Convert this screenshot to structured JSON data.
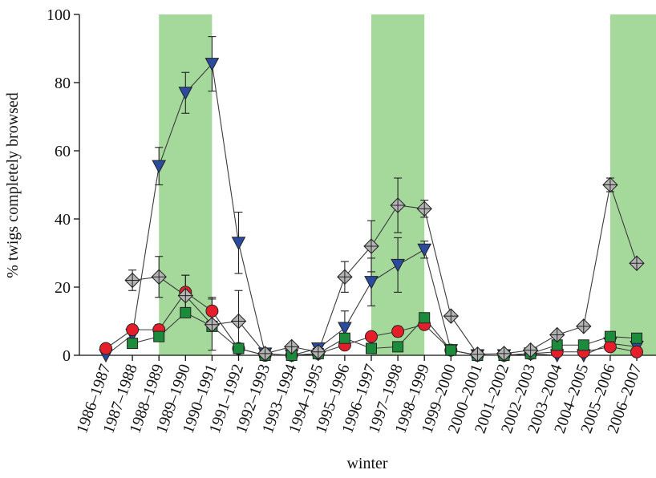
{
  "chart_data": {
    "type": "line",
    "y_label": "% twigs completely browsed",
    "x_label": "winter",
    "categories": [
      "1986–1987",
      "1987–1988",
      "1988–1989",
      "1989–1990",
      "1990–1991",
      "1991–1992",
      "1992–1993",
      "1993–1994",
      "1994–1995",
      "1995–1996",
      "1996–1997",
      "1997–1998",
      "1998–1999",
      "1999–2000",
      "2000–2001",
      "2001–2002",
      "2002–2003",
      "2003–2004",
      "2004–2005",
      "2005–2006",
      "2006–2007"
    ],
    "ylim": [
      0,
      100
    ],
    "yticks": [
      0,
      20,
      40,
      60,
      80,
      100
    ],
    "grid": false,
    "highlight_color": "#a5d99c",
    "highlights": [
      {
        "from": "1988–1989",
        "to": "1990–1991"
      },
      {
        "from": "1996–1997",
        "to": "1998–1999"
      },
      {
        "from": "2005–2006",
        "to": "2006–2007"
      }
    ],
    "series": [
      {
        "color": "#2b4b9f",
        "marker": "triangle-down",
        "values": [
          0,
          6,
          55.5,
          77,
          85.5,
          33,
          0.5,
          0,
          2,
          8,
          21.5,
          26.5,
          31,
          1.5,
          0,
          0,
          0.5,
          0,
          0,
          3.5,
          2.5
        ],
        "errors": [
          null,
          null,
          5.5,
          6,
          8,
          9,
          null,
          null,
          null,
          5,
          7,
          8,
          2.5,
          null,
          null,
          null,
          null,
          null,
          null,
          null,
          null
        ]
      },
      {
        "color": "#e41f2a",
        "marker": "circle",
        "values": [
          2,
          7.5,
          7.5,
          18.5,
          13,
          2,
          0,
          0,
          0.5,
          3,
          5.5,
          7,
          9,
          1.5,
          0,
          0,
          0.5,
          1,
          1,
          2.5,
          1
        ],
        "errors": [
          null,
          1,
          1.5,
          5,
          4,
          null,
          null,
          null,
          null,
          null,
          1,
          1.5,
          1,
          null,
          null,
          null,
          null,
          null,
          null,
          null,
          null
        ]
      },
      {
        "color": "#1d8b3c",
        "marker": "square",
        "values": [
          null,
          3.5,
          5.5,
          12.5,
          8.5,
          2,
          0,
          0,
          0.5,
          5,
          2,
          2.5,
          11,
          1.5,
          0,
          0,
          0.5,
          3,
          3,
          5.5,
          5
        ],
        "errors": [
          null,
          null,
          null,
          null,
          null,
          null,
          null,
          null,
          null,
          null,
          null,
          null,
          null,
          null,
          null,
          null,
          null,
          null,
          null,
          null,
          null
        ]
      },
      {
        "color": "#b4b4b4",
        "marker": "diamond-cross",
        "values": [
          null,
          22,
          23,
          17.5,
          9,
          10,
          0.5,
          2.5,
          1,
          23,
          32,
          44,
          43,
          11.5,
          0.3,
          0.5,
          1.5,
          6,
          8.5,
          50,
          27
        ],
        "errors": [
          null,
          3,
          6,
          6,
          7.5,
          9,
          null,
          null,
          null,
          4.5,
          7.5,
          8,
          2.5,
          null,
          null,
          null,
          null,
          null,
          null,
          2,
          null
        ]
      }
    ]
  }
}
